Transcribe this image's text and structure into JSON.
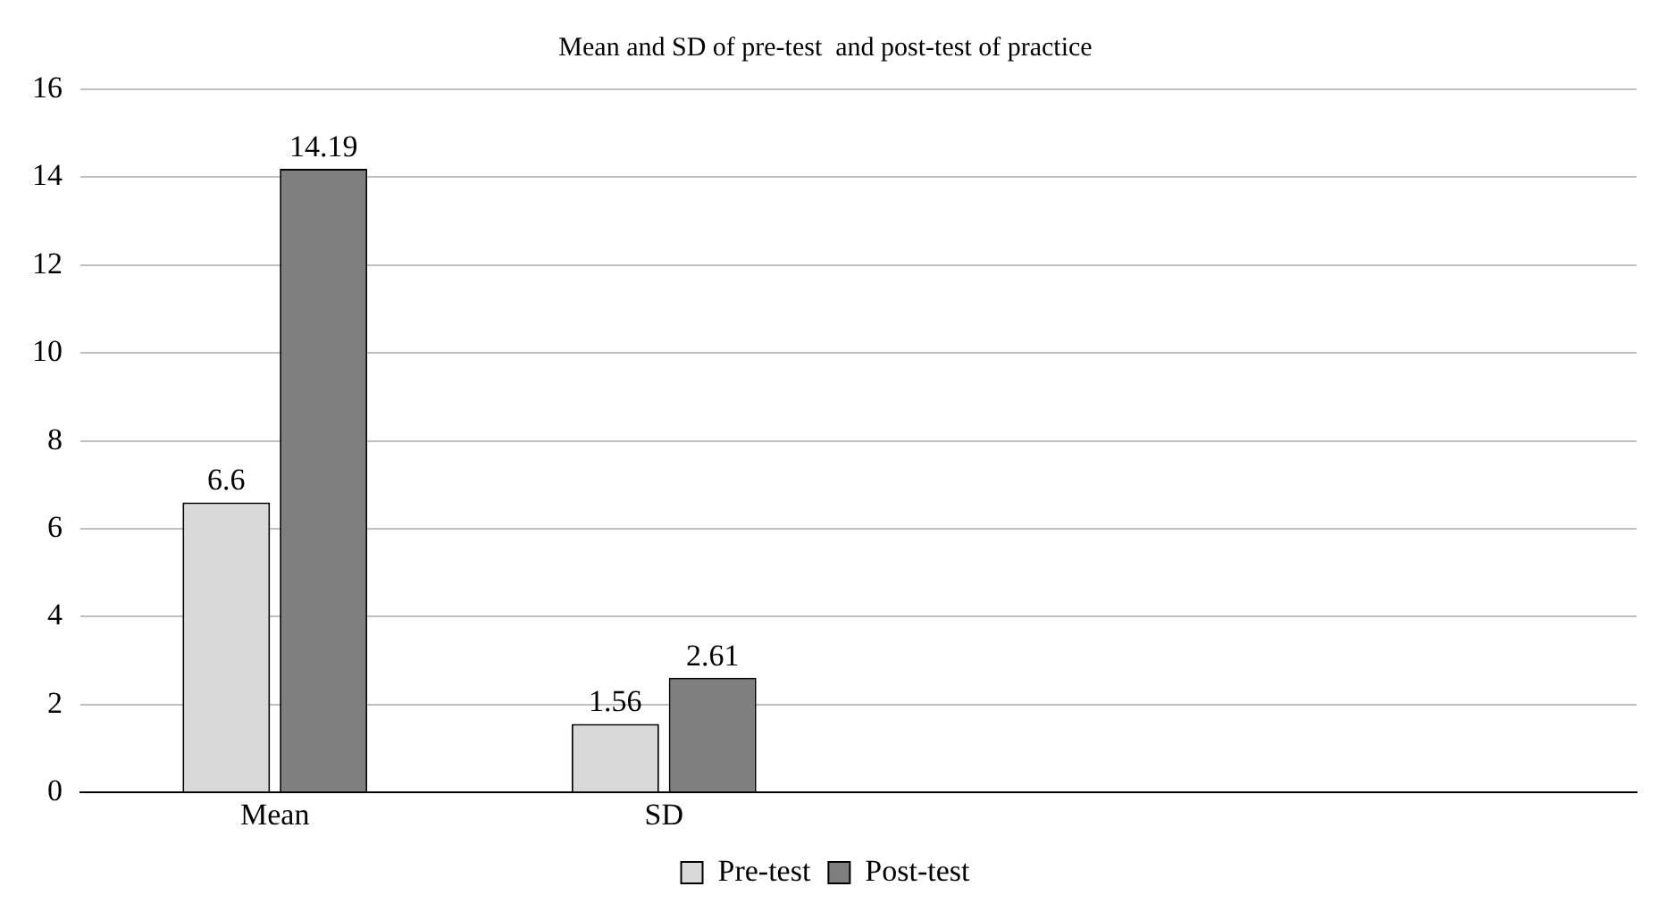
{
  "chart_data": {
    "type": "bar",
    "title": "Mean and SD of pre-test  and post-test of practice",
    "categories": [
      "Mean",
      "SD",
      null,
      null
    ],
    "series": [
      {
        "name": "Pre-test",
        "color": "#d9d9d9",
        "values": [
          6.6,
          1.56,
          null,
          null
        ]
      },
      {
        "name": "Post-test",
        "color": "#7f7f7f",
        "values": [
          14.19,
          2.61,
          null,
          null
        ]
      }
    ],
    "ylim": [
      0,
      16
    ],
    "yticks": [
      0,
      2,
      4,
      6,
      8,
      10,
      12,
      14,
      16
    ],
    "grid": "y",
    "legend": "bottom",
    "data_labels": true
  }
}
